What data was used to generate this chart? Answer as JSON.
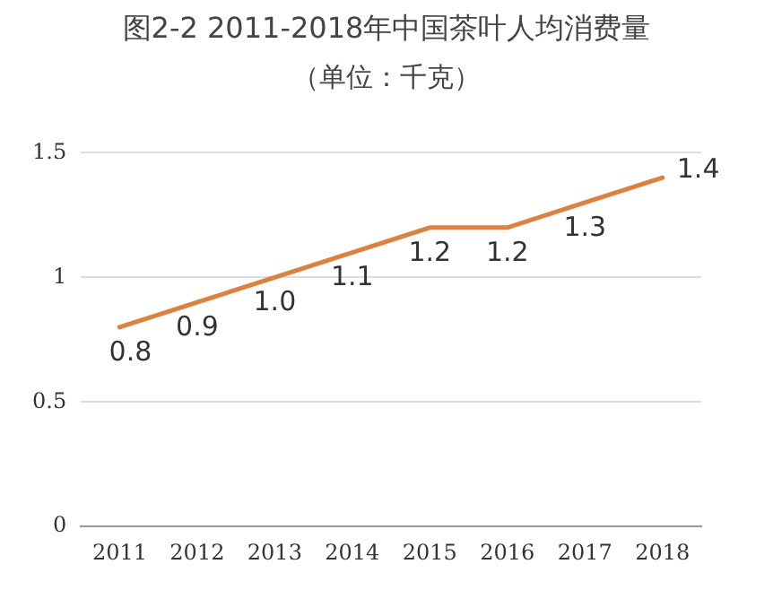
{
  "chart_data": {
    "type": "line",
    "title": "图2-2 2011-2018年中国茶叶人均消费量",
    "subtitle": "（单位：千克）",
    "categories": [
      "2011",
      "2012",
      "2013",
      "2014",
      "2015",
      "2016",
      "2017",
      "2018"
    ],
    "series": [
      {
        "color": "#e0803a",
        "values": [
          0.8,
          0.9,
          1.0,
          1.1,
          1.2,
          1.2,
          1.3,
          1.4
        ],
        "value_labels": [
          "0.8",
          "0.9",
          "1.0",
          "1.1",
          "1.2",
          "1.2",
          "1.3",
          "1.4"
        ]
      }
    ],
    "ylim": [
      0,
      1.5
    ],
    "yticks": [
      0,
      0.5,
      1,
      1.5
    ],
    "grid": "y",
    "legend": false,
    "marker": "none",
    "line_style": "solid"
  }
}
